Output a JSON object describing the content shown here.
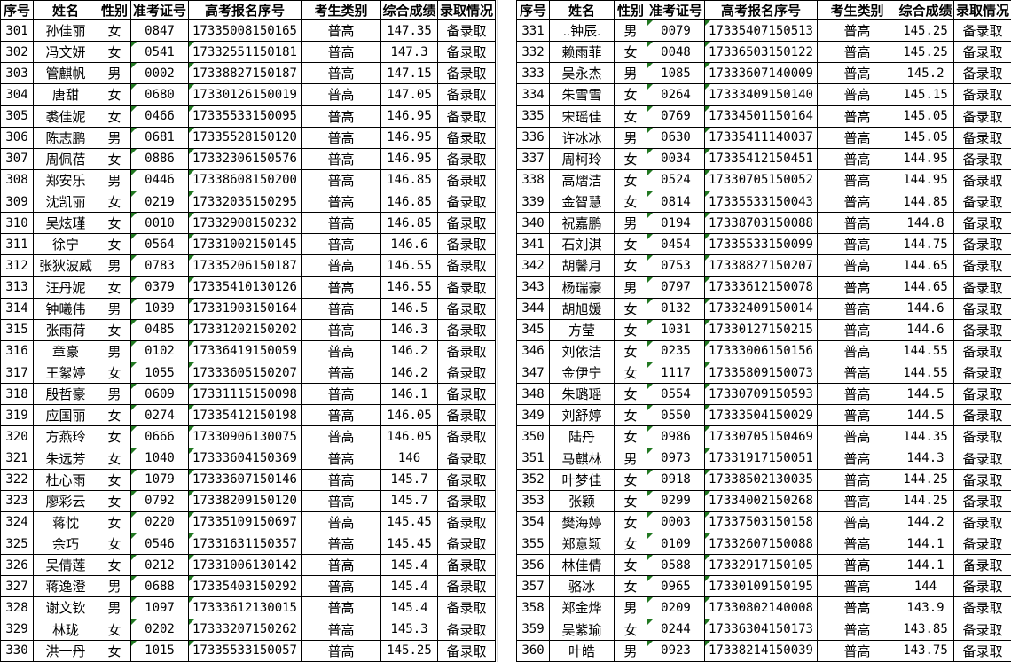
{
  "header": {
    "columns": [
      "序号",
      "姓名",
      "性别",
      "准考证号",
      "高考报名序号",
      "考生类别",
      "综合成绩",
      "录取情况"
    ]
  },
  "column_keys": [
    "no",
    "name",
    "gender",
    "ticket",
    "reg",
    "type",
    "score",
    "status"
  ],
  "colors": {
    "border": "#000000",
    "error_triangle_green": "#217821",
    "gap_gridline": "#d8d8d8",
    "background": "#ffffff"
  },
  "tables": [
    {
      "name": "left",
      "rows": [
        [
          "301",
          "孙佳丽",
          "女",
          "0847",
          "17335008150165",
          "普高",
          "147.35",
          "备录取",
          0
        ],
        [
          "302",
          "冯文妍",
          "女",
          "0541",
          "17332551150181",
          "普高",
          "147.3",
          "备录取",
          1
        ],
        [
          "303",
          "管麒帆",
          "男",
          "0002",
          "17338827150187",
          "普高",
          "147.15",
          "备录取",
          1
        ],
        [
          "304",
          "唐甜",
          "女",
          "0680",
          "17330126150019",
          "普高",
          "147.05",
          "备录取",
          1
        ],
        [
          "305",
          "裘佳妮",
          "女",
          "0466",
          "17335533150095",
          "普高",
          "146.95",
          "备录取",
          1
        ],
        [
          "306",
          "陈志鹏",
          "男",
          "0681",
          "17335528150120",
          "普高",
          "146.95",
          "备录取",
          1
        ],
        [
          "307",
          "周佩蓓",
          "女",
          "0886",
          "17332306150576",
          "普高",
          "146.95",
          "备录取",
          1
        ],
        [
          "308",
          "郑安乐",
          "男",
          "0446",
          "17338608150200",
          "普高",
          "146.85",
          "备录取",
          1
        ],
        [
          "309",
          "沈凯丽",
          "女",
          "0219",
          "17332035150295",
          "普高",
          "146.85",
          "备录取",
          1
        ],
        [
          "310",
          "吴炫瑾",
          "女",
          "0010",
          "17332908150232",
          "普高",
          "146.85",
          "备录取",
          1
        ],
        [
          "311",
          "徐宁",
          "女",
          "0564",
          "17331002150145",
          "普高",
          "146.6",
          "备录取",
          1
        ],
        [
          "312",
          "张狄波威",
          "男",
          "0783",
          "17335206150187",
          "普高",
          "146.55",
          "备录取",
          1
        ],
        [
          "313",
          "汪丹妮",
          "女",
          "0379",
          "17335410130126",
          "普高",
          "146.55",
          "备录取",
          1
        ],
        [
          "314",
          "钟曦伟",
          "男",
          "1039",
          "17331903150164",
          "普高",
          "146.5",
          "备录取",
          1
        ],
        [
          "315",
          "张雨荷",
          "女",
          "0485",
          "17331202150202",
          "普高",
          "146.3",
          "备录取",
          1
        ],
        [
          "316",
          "章豪",
          "男",
          "0102",
          "17336419150059",
          "普高",
          "146.2",
          "备录取",
          1
        ],
        [
          "317",
          "王絮婷",
          "女",
          "1055",
          "17333605150207",
          "普高",
          "146.2",
          "备录取",
          1
        ],
        [
          "318",
          "殷哲豪",
          "男",
          "0609",
          "17331115150098",
          "普高",
          "146.1",
          "备录取",
          1
        ],
        [
          "319",
          "应国丽",
          "女",
          "0274",
          "17335412150198",
          "普高",
          "146.05",
          "备录取",
          1
        ],
        [
          "320",
          "方燕玲",
          "女",
          "0666",
          "17330906130075",
          "普高",
          "146.05",
          "备录取",
          1
        ],
        [
          "321",
          "朱远芳",
          "女",
          "1040",
          "17333604150369",
          "普高",
          "146",
          "备录取",
          1
        ],
        [
          "322",
          "杜心雨",
          "女",
          "1079",
          "17333607150146",
          "普高",
          "145.7",
          "备录取",
          1
        ],
        [
          "323",
          "廖彩云",
          "女",
          "0792",
          "17338209150120",
          "普高",
          "145.7",
          "备录取",
          1
        ],
        [
          "324",
          "蒋忱",
          "女",
          "0220",
          "17335109150697",
          "普高",
          "145.45",
          "备录取",
          1
        ],
        [
          "325",
          "余巧",
          "女",
          "0546",
          "17331631150357",
          "普高",
          "145.45",
          "备录取",
          1
        ],
        [
          "326",
          "吴倩莲",
          "女",
          "0212",
          "17331006130142",
          "普高",
          "145.4",
          "备录取",
          1
        ],
        [
          "327",
          "蒋逸澄",
          "男",
          "0688",
          "17335403150292",
          "普高",
          "145.4",
          "备录取",
          1
        ],
        [
          "328",
          "谢文钦",
          "男",
          "1097",
          "17333612130015",
          "普高",
          "145.4",
          "备录取",
          1
        ],
        [
          "329",
          "林珑",
          "女",
          "0202",
          "17333207150262",
          "普高",
          "145.3",
          "备录取",
          1
        ],
        [
          "330",
          "洪一丹",
          "女",
          "1015",
          "17335533150057",
          "普高",
          "145.25",
          "备录取",
          1
        ]
      ]
    },
    {
      "name": "right",
      "rows": [
        [
          "331",
          "..钟辰.",
          "男",
          "0079",
          "17335407150513",
          "普高",
          "145.25",
          "备录取",
          1
        ],
        [
          "332",
          "赖雨菲",
          "女",
          "0048",
          "17336503150122",
          "普高",
          "145.25",
          "备录取",
          1
        ],
        [
          "333",
          "吴永杰",
          "男",
          "1085",
          "17333607140009",
          "普高",
          "145.2",
          "备录取",
          1
        ],
        [
          "334",
          "朱雪雪",
          "女",
          "0264",
          "17333409150140",
          "普高",
          "145.15",
          "备录取",
          1
        ],
        [
          "335",
          "宋瑶佳",
          "女",
          "0769",
          "17334501150164",
          "普高",
          "145.05",
          "备录取",
          1
        ],
        [
          "336",
          "许冰冰",
          "男",
          "0630",
          "17335411140037",
          "普高",
          "145.05",
          "备录取",
          1
        ],
        [
          "337",
          "周柯玲",
          "女",
          "0034",
          "17335412150451",
          "普高",
          "144.95",
          "备录取",
          1
        ],
        [
          "338",
          "高熠洁",
          "女",
          "0524",
          "17330705150052",
          "普高",
          "144.95",
          "备录取",
          1
        ],
        [
          "339",
          "金智慧",
          "女",
          "0814",
          "17335533150043",
          "普高",
          "144.85",
          "备录取",
          1
        ],
        [
          "340",
          "祝嘉鹏",
          "男",
          "0194",
          "17338703150088",
          "普高",
          "144.8",
          "备录取",
          1
        ],
        [
          "341",
          "石刘淇",
          "女",
          "0454",
          "17335533150099",
          "普高",
          "144.75",
          "备录取",
          1
        ],
        [
          "342",
          "胡馨月",
          "女",
          "0753",
          "17338827150207",
          "普高",
          "144.65",
          "备录取",
          1
        ],
        [
          "343",
          "杨瑞豪",
          "男",
          "0797",
          "17333612150078",
          "普高",
          "144.65",
          "备录取",
          1
        ],
        [
          "344",
          "胡旭媛",
          "女",
          "0132",
          "17332409150014",
          "普高",
          "144.6",
          "备录取",
          1
        ],
        [
          "345",
          "方莹",
          "女",
          "1031",
          "17330127150215",
          "普高",
          "144.6",
          "备录取",
          1
        ],
        [
          "346",
          "刘依洁",
          "女",
          "0235",
          "17333006150156",
          "普高",
          "144.55",
          "备录取",
          1
        ],
        [
          "347",
          "金伊宁",
          "女",
          "1117",
          "17335809150073",
          "普高",
          "144.55",
          "备录取",
          1
        ],
        [
          "348",
          "朱璐瑶",
          "女",
          "0554",
          "17330709150593",
          "普高",
          "144.5",
          "备录取",
          1
        ],
        [
          "349",
          "刘舒婷",
          "女",
          "0550",
          "17333504150029",
          "普高",
          "144.5",
          "备录取",
          1
        ],
        [
          "350",
          "陆丹",
          "女",
          "0986",
          "17330705150469",
          "普高",
          "144.35",
          "备录取",
          1
        ],
        [
          "351",
          "马麒林",
          "男",
          "0973",
          "17331917150051",
          "普高",
          "144.3",
          "备录取",
          1
        ],
        [
          "352",
          "叶梦佳",
          "女",
          "0918",
          "17338502130035",
          "普高",
          "144.25",
          "备录取",
          1
        ],
        [
          "353",
          "张颖",
          "女",
          "0299",
          "17334002150268",
          "普高",
          "144.25",
          "备录取",
          1
        ],
        [
          "354",
          "樊海婷",
          "女",
          "0003",
          "17337503150158",
          "普高",
          "144.2",
          "备录取",
          1
        ],
        [
          "355",
          "郑意颖",
          "女",
          "0109",
          "17332607150088",
          "普高",
          "144.1",
          "备录取",
          1
        ],
        [
          "356",
          "林佳倩",
          "女",
          "0588",
          "17332917150105",
          "普高",
          "144.1",
          "备录取",
          1
        ],
        [
          "357",
          "骆冰",
          "女",
          "0965",
          "17330109150195",
          "普高",
          "144",
          "备录取",
          1
        ],
        [
          "358",
          "郑金烨",
          "男",
          "0209",
          "17330802140008",
          "普高",
          "143.9",
          "备录取",
          1
        ],
        [
          "359",
          "吴紫瑜",
          "女",
          "0244",
          "17336304150173",
          "普高",
          "143.85",
          "备录取",
          1
        ],
        [
          "360",
          "叶皓",
          "男",
          "0923",
          "17338214150039",
          "普高",
          "143.75",
          "备录取",
          1
        ]
      ]
    }
  ]
}
